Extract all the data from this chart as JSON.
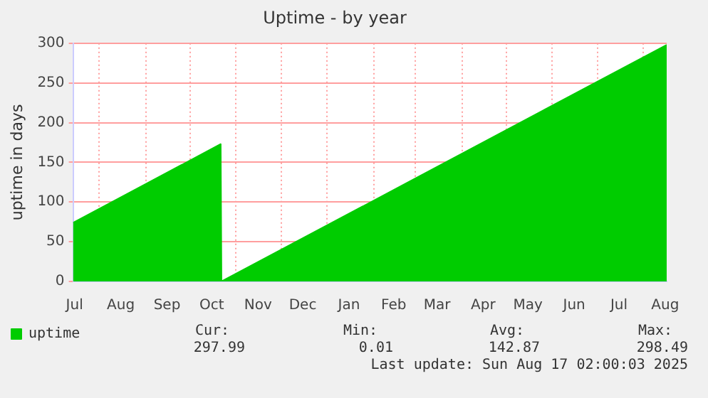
{
  "chart_data": {
    "type": "area",
    "title": "Uptime - by year",
    "ylabel": "uptime in days",
    "x": [
      "2024-07-15",
      "2024-10-22",
      "2024-10-22T12:00",
      "2025-08-17"
    ],
    "series": [
      {
        "name": "uptime",
        "color": "#00cc00",
        "values": [
          74,
          173,
          0,
          298
        ]
      }
    ],
    "xlim": [
      "2024-07-15",
      "2025-08-17"
    ],
    "xticks": [
      {
        "value": "2024-07-16",
        "label": "Jul"
      },
      {
        "value": "2024-08-01",
        "label": null
      },
      {
        "value": "2024-08-16",
        "label": "Aug"
      },
      {
        "value": "2024-09-01",
        "label": null
      },
      {
        "value": "2024-09-16",
        "label": "Sep"
      },
      {
        "value": "2024-10-01",
        "label": null
      },
      {
        "value": "2024-10-16",
        "label": "Oct"
      },
      {
        "value": "2024-11-01",
        "label": null
      },
      {
        "value": "2024-11-16",
        "label": "Nov"
      },
      {
        "value": "2024-12-01",
        "label": null
      },
      {
        "value": "2024-12-16",
        "label": "Dec"
      },
      {
        "value": "2025-01-01",
        "label": null
      },
      {
        "value": "2025-01-16",
        "label": "Jan"
      },
      {
        "value": "2025-02-01",
        "label": null
      },
      {
        "value": "2025-02-15",
        "label": "Feb"
      },
      {
        "value": "2025-03-01",
        "label": null
      },
      {
        "value": "2025-03-16",
        "label": "Mar"
      },
      {
        "value": "2025-04-01",
        "label": null
      },
      {
        "value": "2025-04-16",
        "label": "Apr"
      },
      {
        "value": "2025-05-01",
        "label": null
      },
      {
        "value": "2025-05-16",
        "label": "May"
      },
      {
        "value": "2025-06-01",
        "label": null
      },
      {
        "value": "2025-06-16",
        "label": "Jun"
      },
      {
        "value": "2025-07-01",
        "label": null
      },
      {
        "value": "2025-07-16",
        "label": "Jul"
      },
      {
        "value": "2025-08-01",
        "label": null
      },
      {
        "value": "2025-08-16",
        "label": "Aug"
      }
    ],
    "ylim": [
      0,
      300
    ],
    "yticks": [
      0,
      50,
      100,
      150,
      200,
      250,
      300
    ],
    "grid": true,
    "legend": "bottom left",
    "annotations": [
      "Cur:",
      "297.99",
      "Min:",
      "0.01",
      "Avg:",
      "142.87",
      "Max:",
      "298.49",
      "Last update: Sun Aug 17 02:00:03 2025"
    ]
  }
}
